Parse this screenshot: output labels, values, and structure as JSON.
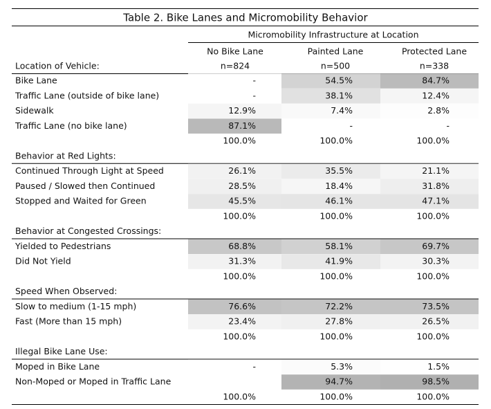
{
  "title": "Table 2. Bike Lanes and Micromobility Behavior",
  "header": {
    "group": "Micromobility Infrastructure at Location",
    "columns": [
      "No Bike Lane",
      "Painted Lane",
      "Protected Lane"
    ],
    "row_label": "Location of Vehicle:",
    "counts": [
      "n=824",
      "n=500",
      "n=338"
    ]
  },
  "sections": [
    {
      "rows": [
        {
          "label": "Bike Lane",
          "cells": [
            "-",
            "54.5%",
            "84.7%"
          ],
          "shades": [
            "#ffffff",
            "#d3d3d3",
            "#bbbbbb"
          ]
        },
        {
          "label": "Traffic Lane (outside of bike lane)",
          "cells": [
            "-",
            "38.1%",
            "12.4%"
          ],
          "shades": [
            "#ffffff",
            "#e1e1e1",
            "#f5f5f5"
          ]
        },
        {
          "label": "Sidewalk",
          "cells": [
            "12.9%",
            "7.4%",
            "2.8%"
          ],
          "shades": [
            "#f5f5f5",
            "#f9f9f9",
            "#fdfdfd"
          ]
        },
        {
          "label": "Traffic Lane (no bike lane)",
          "cells": [
            "87.1%",
            "-",
            "-"
          ],
          "shades": [
            "#b9b9b9",
            "#ffffff",
            "#ffffff"
          ]
        }
      ],
      "total": [
        "100.0%",
        "100.0%",
        "100.0%"
      ]
    },
    {
      "title": "Behavior at Red Lights:",
      "rows": [
        {
          "label": "Continued Through Light at Speed",
          "cells": [
            "26.1%",
            "35.5%",
            "21.1%"
          ],
          "shades": [
            "#f2f2f2",
            "#ebebeb",
            "#f5f5f5"
          ]
        },
        {
          "label": "Paused / Slowed then Continued",
          "cells": [
            "28.5%",
            "18.4%",
            "31.8%"
          ],
          "shades": [
            "#f0f0f0",
            "#f6f6f6",
            "#eeeeee"
          ]
        },
        {
          "label": "Stopped and Waited for Green",
          "cells": [
            "45.5%",
            "46.1%",
            "47.1%"
          ],
          "shades": [
            "#e6e6e6",
            "#e5e5e5",
            "#e4e4e4"
          ]
        }
      ],
      "total": [
        "100.0%",
        "100.0%",
        "100.0%"
      ]
    },
    {
      "title": "Behavior at Congested Crossings:",
      "rows": [
        {
          "label": "Yielded to Pedestrians",
          "cells": [
            "68.8%",
            "58.1%",
            "69.7%"
          ],
          "shades": [
            "#c8c8c8",
            "#d1d1d1",
            "#c7c7c7"
          ]
        },
        {
          "label": "Did Not Yield",
          "cells": [
            "31.3%",
            "41.9%",
            "30.3%"
          ],
          "shades": [
            "#f2f2f2",
            "#e8e8e8",
            "#f3f3f3"
          ]
        }
      ],
      "total": [
        "100.0%",
        "100.0%",
        "100.0%"
      ]
    },
    {
      "title": "Speed When Observed:",
      "rows": [
        {
          "label": "Slow to medium (1-15 mph)",
          "cells": [
            "76.6%",
            "72.2%",
            "73.5%"
          ],
          "shades": [
            "#c2c2c2",
            "#c5c5c5",
            "#c4c4c4"
          ]
        },
        {
          "label": "Fast (More than 15 mph)",
          "cells": [
            "23.4%",
            "27.8%",
            "26.5%"
          ],
          "shades": [
            "#f3f3f3",
            "#f0f0f0",
            "#f1f1f1"
          ]
        }
      ],
      "total": [
        "100.0%",
        "100.0%",
        "100.0%"
      ]
    },
    {
      "title": "Illegal Bike Lane Use:",
      "rows": [
        {
          "label": "Moped in Bike Lane",
          "cells": [
            "-",
            "5.3%",
            "1.5%"
          ],
          "shades": [
            "#ffffff",
            "#fbfbfb",
            "#fefefe"
          ]
        },
        {
          "label": "Non-Moped or Moped in Traffic Lane",
          "cells": [
            "",
            "94.7%",
            "98.5%"
          ],
          "shades": [
            "#ffffff",
            "#b3b3b3",
            "#b0b0b0"
          ]
        }
      ],
      "total": [
        "100.0%",
        "100.0%",
        "100.0%"
      ]
    }
  ]
}
